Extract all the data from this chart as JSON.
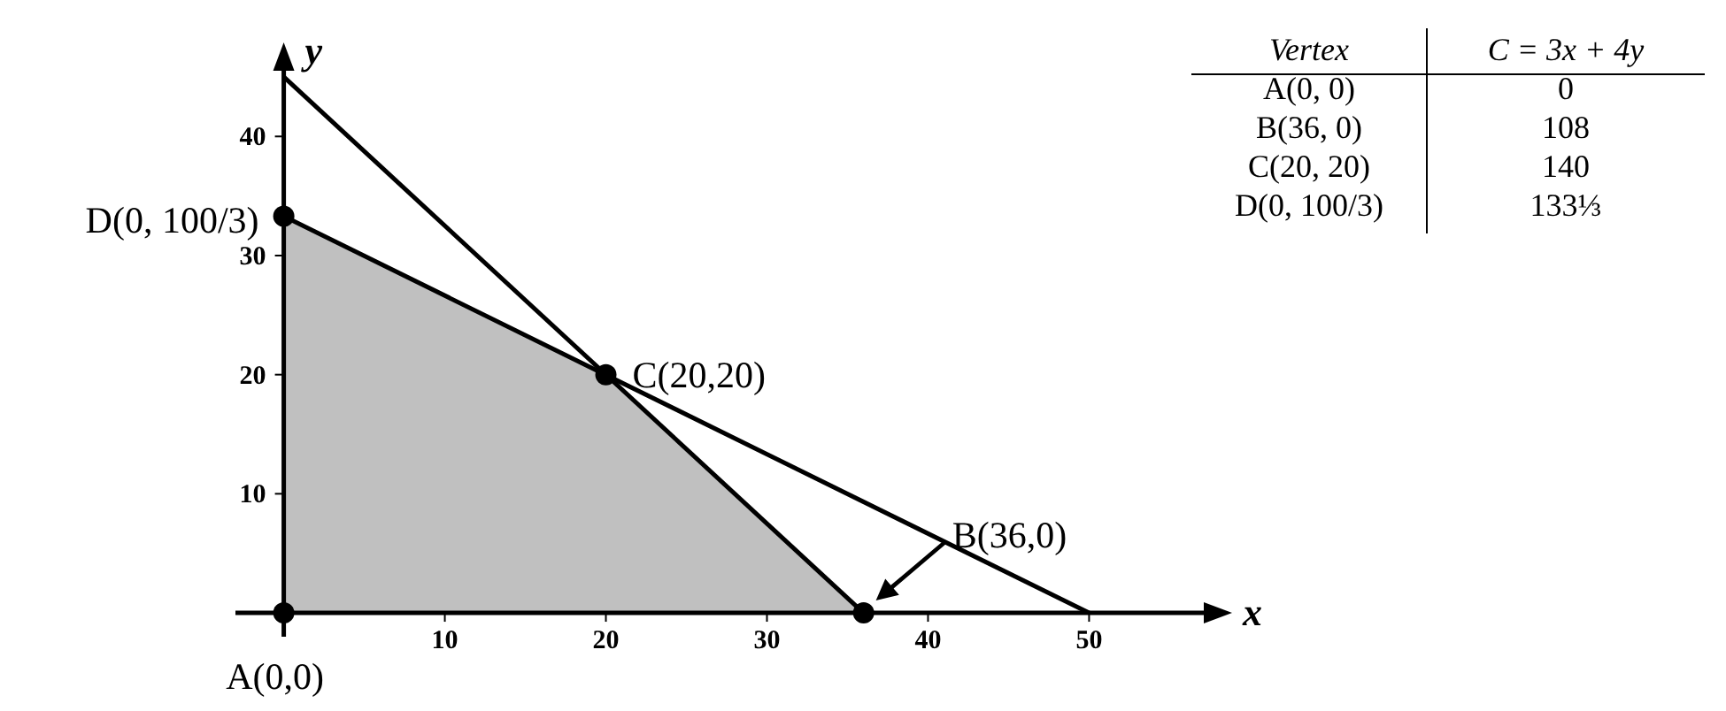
{
  "chart_data": [
    {
      "type": "line",
      "xlabel": "x",
      "ylabel": "y",
      "xlim": [
        -3,
        58
      ],
      "ylim": [
        -2,
        47
      ],
      "xticks": [
        10,
        20,
        30,
        40,
        50
      ],
      "yticks": [
        10,
        20,
        30,
        40
      ],
      "grid": false,
      "series": [
        {
          "type": "area",
          "color": "#c0c0c0",
          "x": [
            0,
            20,
            36
          ],
          "values": [
            33.3,
            20,
            0
          ]
        },
        {
          "type": "line",
          "color": "#000000",
          "x": [
            0,
            36
          ],
          "values": [
            45,
            0
          ]
        },
        {
          "type": "line",
          "color": "#000000",
          "x": [
            0,
            50
          ],
          "values": [
            33.3,
            0
          ]
        },
        {
          "type": "scatter",
          "color": "#000000",
          "marker": "circle",
          "x": [
            0,
            36,
            20,
            0
          ],
          "values": [
            0,
            0,
            20,
            33.3
          ]
        }
      ],
      "annotations": [
        {
          "text": "A(0,0)",
          "x": 0,
          "y": 0
        },
        {
          "text": "B(36,0)",
          "x": 36,
          "y": 0
        },
        {
          "text": "C(20,20)",
          "x": 20,
          "y": 20
        },
        {
          "text": "D(0, 100/3)",
          "x": 0,
          "y": 33.3
        }
      ]
    },
    {
      "type": "other",
      "annotations": [
        "Vertex",
        "C = 3x + 4y",
        "A(0, 0)",
        "0",
        "B(36, 0)",
        "108",
        "C(20, 20)",
        "140",
        "D(0, 100/3)",
        "133⅓"
      ]
    }
  ]
}
